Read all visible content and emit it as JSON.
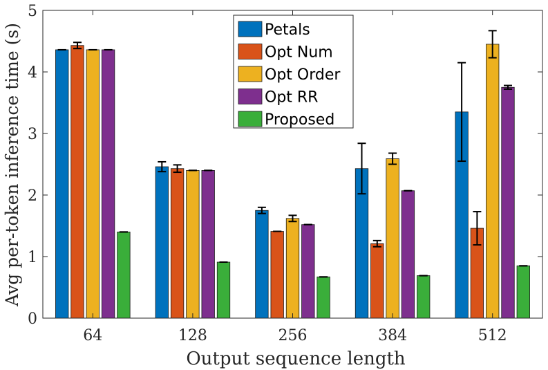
{
  "chart_data": {
    "type": "bar",
    "xlabel": "Output sequence length",
    "ylabel": "Avg per-token inference time (s)",
    "categories": [
      "64",
      "128",
      "256",
      "384",
      "512"
    ],
    "ylim": [
      0,
      5
    ],
    "yticks": [
      "0",
      "1",
      "2",
      "3",
      "4",
      "5"
    ],
    "legend_position": "top-center",
    "grid": false,
    "series": [
      {
        "name": "Petals",
        "color": "#0072BD",
        "values": [
          4.36,
          2.46,
          1.75,
          2.43,
          3.35
        ],
        "errors": [
          0.0,
          0.08,
          0.05,
          0.41,
          0.8
        ]
      },
      {
        "name": "Opt Num",
        "color": "#D95319",
        "values": [
          4.43,
          2.43,
          1.41,
          1.21,
          1.46
        ],
        "errors": [
          0.05,
          0.06,
          0.0,
          0.05,
          0.27
        ]
      },
      {
        "name": "Opt Order",
        "color": "#EDB120",
        "values": [
          4.36,
          2.4,
          1.62,
          2.59,
          4.45
        ],
        "errors": [
          0.0,
          0.0,
          0.05,
          0.09,
          0.22
        ]
      },
      {
        "name": "Opt RR",
        "color": "#7E2F8E",
        "values": [
          4.36,
          2.4,
          1.52,
          2.07,
          3.75
        ],
        "errors": [
          0.0,
          0.0,
          0.0,
          0.0,
          0.03
        ]
      },
      {
        "name": "Proposed",
        "color": "#3AAE3A",
        "values": [
          1.4,
          0.91,
          0.67,
          0.69,
          0.85
        ],
        "errors": [
          0,
          0,
          0,
          0,
          0
        ]
      }
    ]
  }
}
